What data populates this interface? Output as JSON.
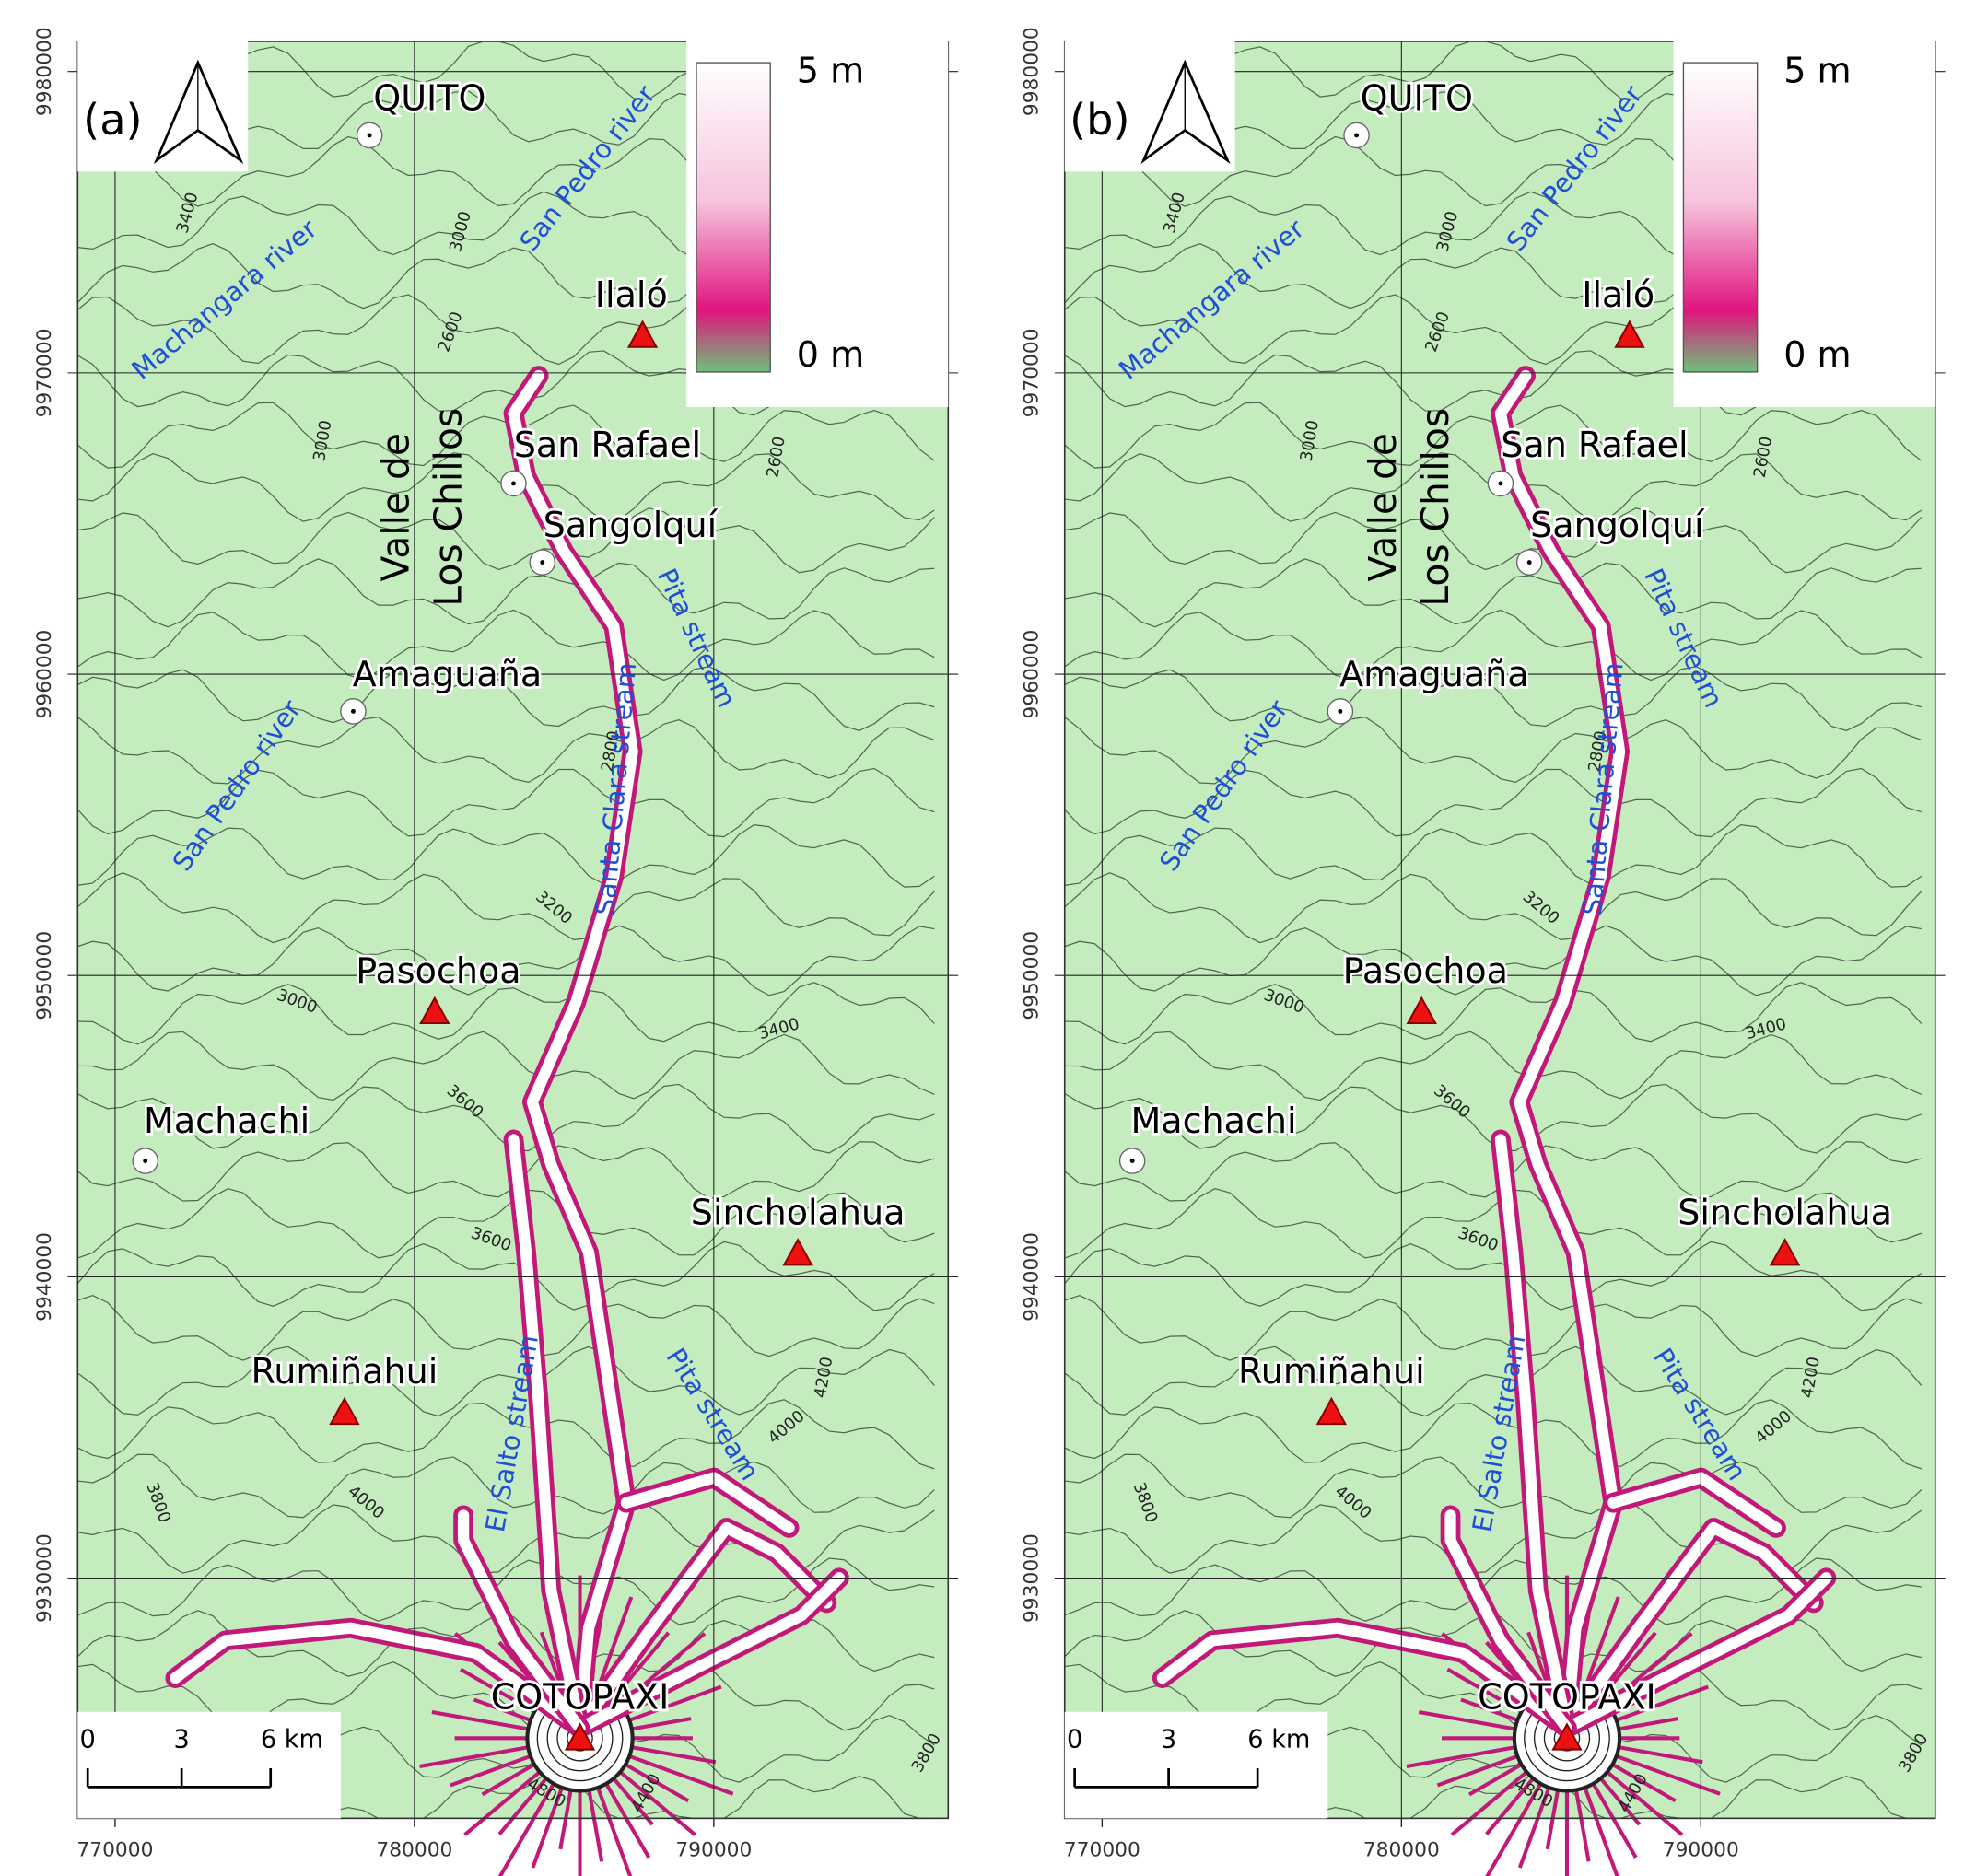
{
  "panels": [
    {
      "label": "(a)",
      "legend": [
        "5 m",
        "0 m"
      ],
      "places": [
        "QUITO",
        "San Rafael",
        "Sangolquí",
        "Amaguaña",
        "Machachi"
      ],
      "peaks": [
        "Ilaló",
        "Pasochoa",
        "Sincholahua",
        "Rumiñahui",
        "COTOPAXI"
      ],
      "valley": [
        "Valle de",
        "Los Chillos"
      ],
      "rivers": [
        "Machangara river",
        "San Pedro river",
        "Pita stream",
        "Santa Clara stream",
        "San Pedro river",
        "El Salto stream",
        "Pita stream"
      ],
      "contour_labels": [
        "3400",
        "3000",
        "2600",
        "3000",
        "2600",
        "2800",
        "3200",
        "3000",
        "3400",
        "3600",
        "3600",
        "4200",
        "4000",
        "3800",
        "4000",
        "4800",
        "4400",
        "3800"
      ],
      "scale_bar": [
        "0",
        "3",
        "6 km"
      ],
      "xlim": [
        768750,
        797830
      ],
      "xticks": [
        770000,
        780000,
        790000
      ],
      "ylim": [
        9922030,
        9981000
      ],
      "yticks": [
        9930000,
        9940000,
        9950000,
        9960000,
        9970000,
        9980000
      ]
    },
    {
      "label": "(b)",
      "legend": [
        "5 m",
        "0 m"
      ],
      "places": [
        "QUITO",
        "San Rafael",
        "Sangolquí",
        "Amaguaña",
        "Machachi"
      ],
      "peaks": [
        "Ilaló",
        "Pasochoa",
        "Sincholahua",
        "Rumiñahui",
        "COTOPAXI"
      ],
      "valley": [
        "Valle de",
        "Los Chillos"
      ],
      "rivers": [
        "Machangara river",
        "San Pedro river",
        "Pita stream",
        "Santa Clara stream",
        "San Pedro river",
        "El Salto stream",
        "Pita stream"
      ],
      "contour_labels": [
        "3400",
        "3000",
        "2600",
        "3000",
        "2600",
        "2800",
        "3200",
        "3000",
        "3400",
        "3600",
        "3600",
        "4200",
        "4000",
        "3800",
        "4000",
        "4800",
        "4400",
        "3800"
      ],
      "scale_bar": [
        "0",
        "3",
        "6 km"
      ],
      "xlim": [
        768750,
        797830
      ],
      "xticks": [
        770000,
        780000,
        790000
      ],
      "ylim": [
        9922030,
        9981000
      ],
      "yticks": [
        9930000,
        9940000,
        9950000,
        9960000,
        9970000,
        9980000
      ]
    }
  ]
}
